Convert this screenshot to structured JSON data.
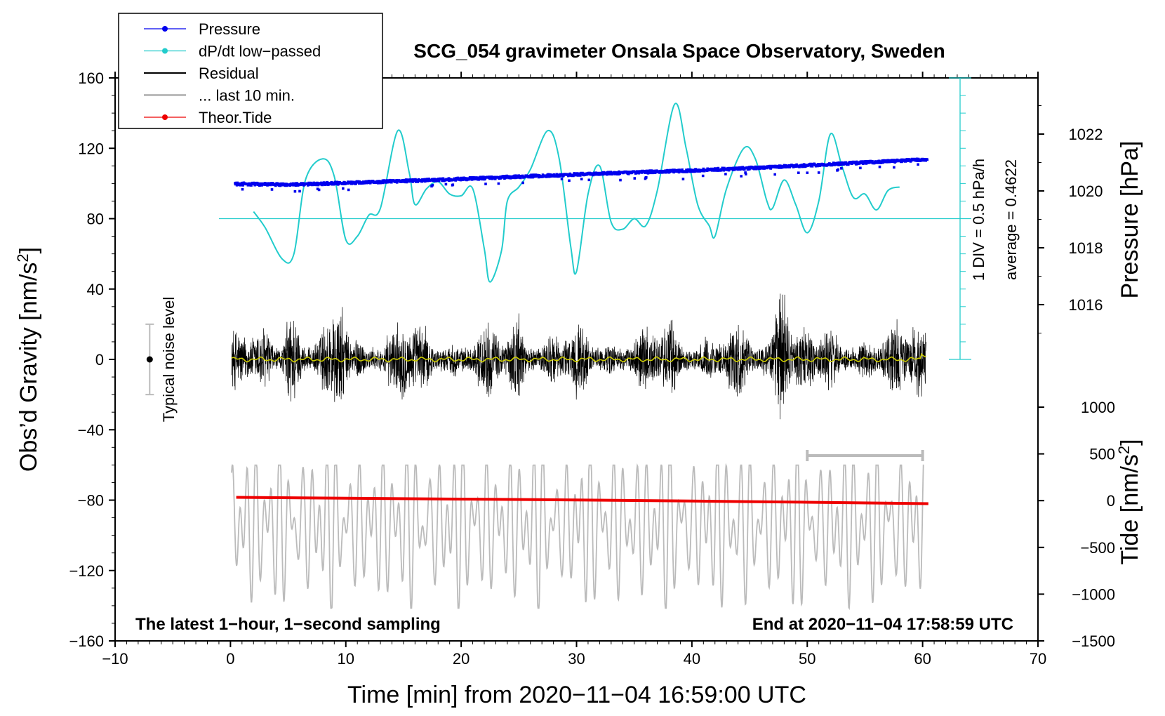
{
  "chart_data": {
    "type": "line",
    "title": "SCG_054 gravimeter Onsala Space Observatory, Sweden",
    "xlabel": "Time [min] from 2020−11−04 16:59:00 UTC",
    "ylabel_left": "Obs’d Gravity [nm/s",
    "ylabel_left_sup": "2",
    "ylabel_left_end": "]",
    "ylabel_right_pressure": "Pressure [hPa]",
    "ylabel_right_tide": "Tide [nm/s",
    "ylabel_right_tide_sup": "2",
    "ylabel_right_tide_end": "]",
    "xlim": [
      -10,
      70
    ],
    "ylim": [
      -160,
      160
    ],
    "x_ticks": [
      "−10",
      "0",
      "10",
      "20",
      "30",
      "40",
      "50",
      "60",
      "70"
    ],
    "x_tick_values": [
      -10,
      0,
      10,
      20,
      30,
      40,
      50,
      60,
      70
    ],
    "y_ticks": [
      "160",
      "120",
      "80",
      "40",
      "0",
      "−40",
      "−80",
      "−120",
      "−160"
    ],
    "y_tick_values": [
      160,
      120,
      80,
      40,
      0,
      -40,
      -80,
      -120,
      -160
    ],
    "pressure_ticks": [
      "1022",
      "1020",
      "1018",
      "1016"
    ],
    "pressure_tick_values": [
      1022,
      1020,
      1018,
      1016
    ],
    "pressure_axis_range": [
      1013,
      1024
    ],
    "tide_ticks": [
      "1000",
      "500",
      "0",
      "−500",
      "−1000",
      "−1500"
    ],
    "tide_tick_values": [
      1000,
      500,
      0,
      -500,
      -1000,
      -1500
    ],
    "tide_axis_range": [
      -1500,
      1000
    ],
    "legend": [
      {
        "label": "Pressure",
        "color": "#0000ee",
        "marker": true
      },
      {
        "label": "dP/dt low−passed",
        "color": "#22cccc",
        "marker": true
      },
      {
        "label": "Residual",
        "color": "#000000",
        "marker": false
      },
      {
        "label": "... last 10 min.",
        "color": "#bbbbbb",
        "marker": false
      },
      {
        "label": "Theor.Tide",
        "color": "#ee0000",
        "marker": true
      }
    ],
    "noise_label": "Typical noise level",
    "noise_level": {
      "x": -7,
      "center": 0,
      "low": -20,
      "high": 20
    },
    "dpdt_scale_label": "1 DIV = 0.5 hPa/h",
    "dpdt_average_label": "average = 0.4622",
    "dpdt_zero_gravity_level": 80,
    "footer_left": "The latest 1−hour, 1−second sampling",
    "footer_right": "End at 2020−11−04 17:58:59 UTC",
    "last10_marker_range_min": [
      50,
      60
    ],
    "series": [
      {
        "name": "Pressure",
        "axis": "pressure_hPa",
        "x": [
          0,
          5,
          10,
          15,
          20,
          25,
          30,
          35,
          40,
          45,
          50,
          55,
          60
        ],
        "values": [
          1020.25,
          1020.22,
          1020.28,
          1020.35,
          1020.42,
          1020.5,
          1020.58,
          1020.65,
          1020.72,
          1020.8,
          1020.9,
          1021.0,
          1021.1
        ],
        "color": "#0000ee"
      },
      {
        "name": "dP/dt low−passed",
        "axis": "gravity_scale",
        "x": [
          2,
          3,
          4.5,
          5.5,
          6.5,
          8,
          9,
          10,
          11,
          12,
          13,
          14.5,
          15.5,
          16,
          17,
          18,
          19,
          20,
          21,
          22,
          22.5,
          23.5,
          24,
          25,
          26,
          27.5,
          28.5,
          29.5,
          30,
          31,
          32,
          33,
          34,
          35,
          36,
          37,
          38.5,
          39.5,
          40.5,
          41.5,
          42,
          43,
          44.5,
          45.5,
          46.5,
          47,
          48,
          49,
          50,
          51,
          52,
          53,
          54,
          55,
          56,
          57,
          58
        ],
        "values": [
          84,
          75,
          57,
          60,
          102,
          114,
          104,
          68,
          70,
          82,
          86,
          130,
          106,
          88,
          97,
          101,
          94,
          93,
          97,
          63,
          44,
          62,
          90,
          98,
          108,
          130,
          114,
          64,
          50,
          94,
          110,
          78,
          74,
          80,
          76,
          96,
          145,
          120,
          88,
          76,
          70,
          97,
          120,
          114,
          90,
          86,
          102,
          88,
          72,
          90,
          128,
          110,
          92,
          94,
          85,
          96,
          98
        ],
        "color": "#22cccc"
      },
      {
        "name": "Theor.Tide",
        "axis": "gravity",
        "x": [
          0.5,
          10,
          20,
          30,
          40,
          50,
          60.5
        ],
        "values": [
          -78.4,
          -78.9,
          -79.4,
          -79.9,
          -80.5,
          -81.2,
          -82
        ],
        "color": "#ee0000"
      }
    ]
  }
}
